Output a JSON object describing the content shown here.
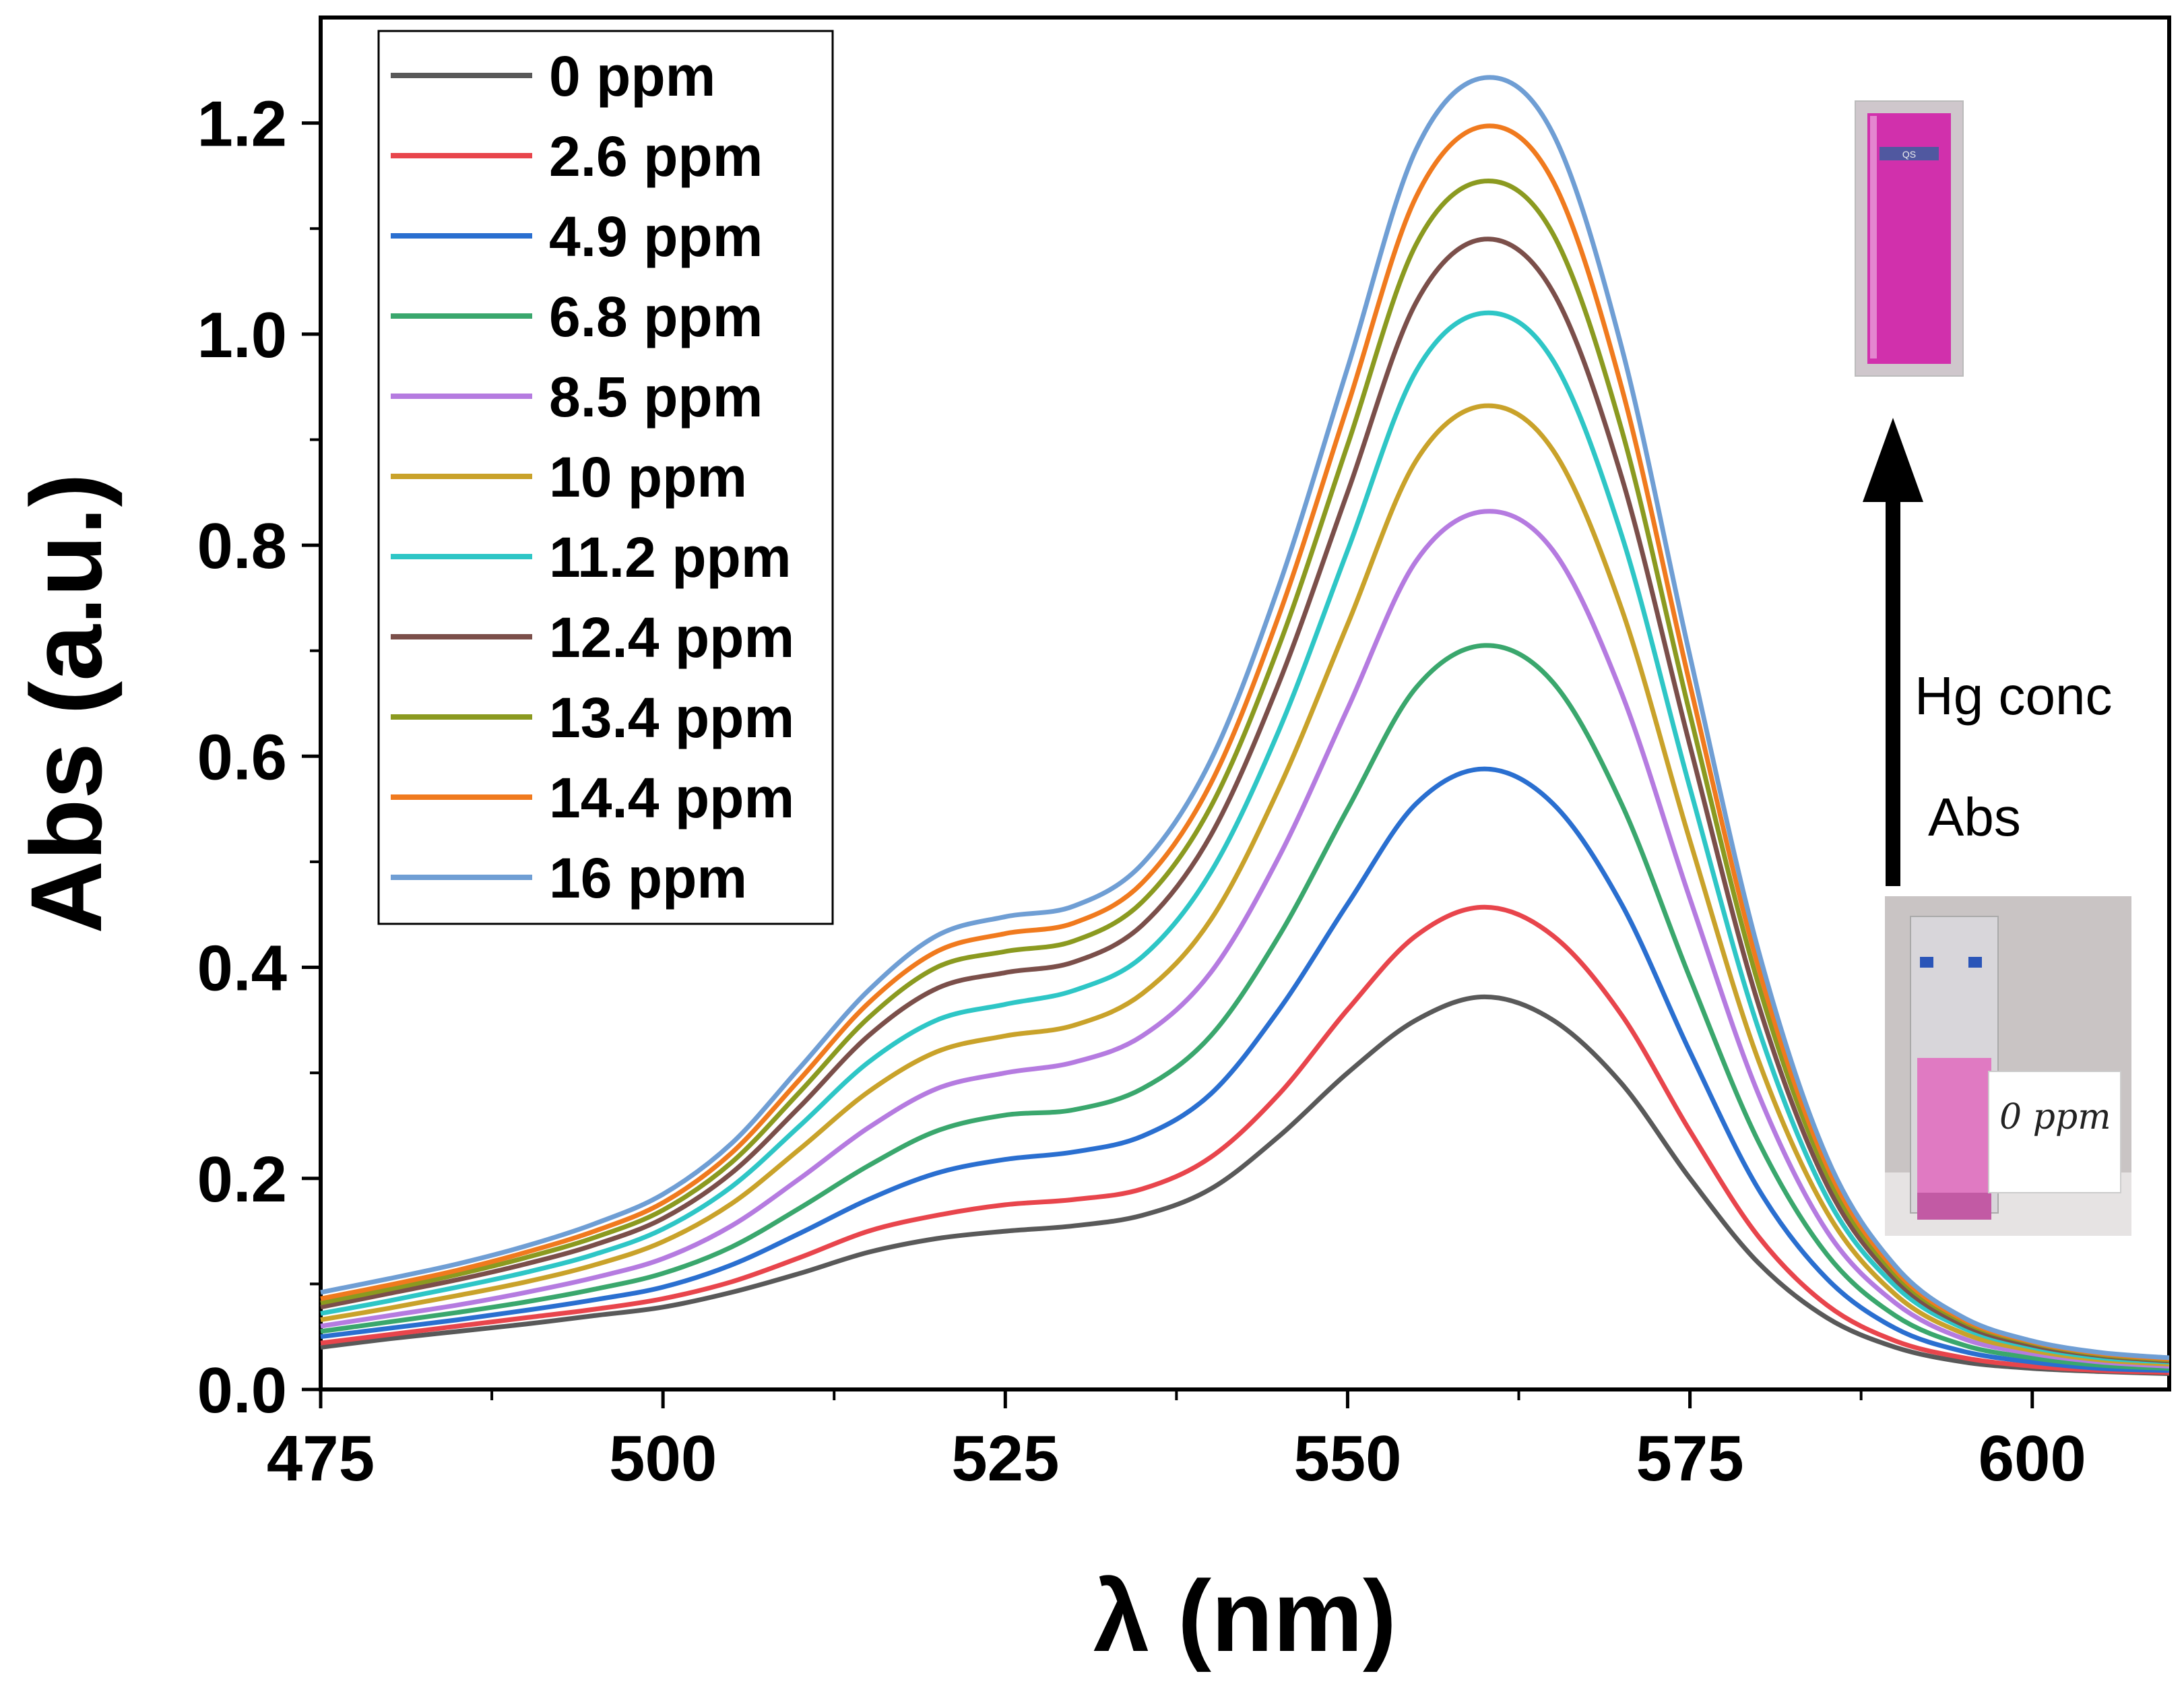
{
  "chart_data": {
    "type": "line",
    "title": "",
    "xlabel": "λ (nm)",
    "ylabel": "Abs (a.u.)",
    "xlim": [
      475,
      610
    ],
    "ylim": [
      0.0,
      1.3
    ],
    "x_ticks": [
      "475",
      "500",
      "525",
      "550",
      "575",
      "600"
    ],
    "y_ticks": [
      "0.0",
      "0.2",
      "0.4",
      "0.6",
      "0.8",
      "1.0",
      "1.2"
    ],
    "grid": false,
    "legend_position": "top-left",
    "x": [
      475,
      480,
      485,
      490,
      495,
      500,
      505,
      510,
      515,
      520,
      525,
      530,
      535,
      540,
      545,
      550,
      555,
      560,
      565,
      570,
      575,
      580,
      585,
      590,
      595,
      600,
      605,
      610
    ],
    "series": [
      {
        "name": "0 ppm",
        "color": "#595959",
        "values": [
          0.04,
          0.048,
          0.055,
          0.062,
          0.07,
          0.078,
          0.092,
          0.11,
          0.13,
          0.143,
          0.15,
          0.155,
          0.165,
          0.19,
          0.24,
          0.3,
          0.35,
          0.372,
          0.35,
          0.29,
          0.2,
          0.12,
          0.068,
          0.04,
          0.026,
          0.02,
          0.017,
          0.015
        ]
      },
      {
        "name": "2.6 ppm",
        "color": "#e8454c",
        "values": [
          0.044,
          0.052,
          0.06,
          0.068,
          0.076,
          0.086,
          0.102,
          0.125,
          0.15,
          0.165,
          0.175,
          0.18,
          0.19,
          0.22,
          0.28,
          0.36,
          0.43,
          0.457,
          0.43,
          0.355,
          0.245,
          0.145,
          0.08,
          0.046,
          0.03,
          0.022,
          0.018,
          0.016
        ]
      },
      {
        "name": "4.9 ppm",
        "color": "#2a6fd0",
        "values": [
          0.05,
          0.058,
          0.066,
          0.075,
          0.085,
          0.097,
          0.118,
          0.148,
          0.18,
          0.205,
          0.218,
          0.225,
          0.24,
          0.28,
          0.36,
          0.46,
          0.555,
          0.588,
          0.555,
          0.46,
          0.32,
          0.19,
          0.105,
          0.058,
          0.036,
          0.026,
          0.02,
          0.018
        ]
      },
      {
        "name": "6.8 ppm",
        "color": "#3aa76d",
        "values": [
          0.055,
          0.064,
          0.073,
          0.083,
          0.095,
          0.11,
          0.135,
          0.172,
          0.212,
          0.245,
          0.26,
          0.265,
          0.285,
          0.335,
          0.43,
          0.55,
          0.665,
          0.705,
          0.67,
          0.555,
          0.39,
          0.235,
          0.128,
          0.07,
          0.042,
          0.03,
          0.023,
          0.02
        ]
      },
      {
        "name": "8.5 ppm",
        "color": "#b57be0",
        "values": [
          0.06,
          0.07,
          0.08,
          0.092,
          0.106,
          0.124,
          0.155,
          0.2,
          0.248,
          0.285,
          0.3,
          0.31,
          0.335,
          0.395,
          0.505,
          0.645,
          0.785,
          0.832,
          0.795,
          0.66,
          0.465,
          0.28,
          0.15,
          0.082,
          0.048,
          0.034,
          0.026,
          0.022
        ]
      },
      {
        "name": "10 ppm",
        "color": "#c9a22a",
        "values": [
          0.066,
          0.077,
          0.089,
          0.102,
          0.118,
          0.14,
          0.176,
          0.228,
          0.282,
          0.32,
          0.335,
          0.345,
          0.375,
          0.445,
          0.57,
          0.725,
          0.88,
          0.932,
          0.89,
          0.74,
          0.52,
          0.312,
          0.168,
          0.09,
          0.053,
          0.037,
          0.028,
          0.024
        ]
      },
      {
        "name": "11.2 ppm",
        "color": "#2ec6c6",
        "values": [
          0.072,
          0.084,
          0.097,
          0.111,
          0.128,
          0.152,
          0.192,
          0.25,
          0.31,
          0.35,
          0.365,
          0.378,
          0.41,
          0.49,
          0.625,
          0.795,
          0.965,
          1.02,
          0.975,
          0.81,
          0.57,
          0.342,
          0.182,
          0.098,
          0.058,
          0.04,
          0.03,
          0.026
        ]
      },
      {
        "name": "12.4 ppm",
        "color": "#7b4f4a",
        "values": [
          0.078,
          0.091,
          0.104,
          0.119,
          0.137,
          0.162,
          0.205,
          0.268,
          0.335,
          0.38,
          0.395,
          0.405,
          0.44,
          0.525,
          0.67,
          0.85,
          1.03,
          1.09,
          1.04,
          0.865,
          0.61,
          0.365,
          0.194,
          0.104,
          0.061,
          0.042,
          0.032,
          0.027
        ]
      },
      {
        "name": "13.4 ppm",
        "color": "#8b9a20",
        "values": [
          0.082,
          0.095,
          0.109,
          0.125,
          0.144,
          0.17,
          0.215,
          0.282,
          0.352,
          0.4,
          0.415,
          0.425,
          0.462,
          0.552,
          0.705,
          0.895,
          1.085,
          1.145,
          1.095,
          0.91,
          0.64,
          0.384,
          0.204,
          0.109,
          0.064,
          0.044,
          0.033,
          0.028
        ]
      },
      {
        "name": "14.4 ppm",
        "color": "#f07a1e",
        "values": [
          0.086,
          0.099,
          0.113,
          0.13,
          0.15,
          0.177,
          0.224,
          0.294,
          0.366,
          0.415,
          0.432,
          0.442,
          0.48,
          0.574,
          0.734,
          0.932,
          1.13,
          1.197,
          1.145,
          0.95,
          0.668,
          0.4,
          0.212,
          0.113,
          0.066,
          0.045,
          0.034,
          0.029
        ]
      },
      {
        "name": "16 ppm",
        "color": "#6f9ed4",
        "values": [
          0.092,
          0.105,
          0.119,
          0.136,
          0.157,
          0.185,
          0.233,
          0.305,
          0.378,
          0.43,
          0.448,
          0.458,
          0.498,
          0.596,
          0.762,
          0.968,
          1.175,
          1.243,
          1.19,
          0.988,
          0.695,
          0.416,
          0.22,
          0.117,
          0.068,
          0.046,
          0.035,
          0.03
        ]
      }
    ],
    "annotations": {
      "arrow_text_1": "Hg conc",
      "arrow_text_2": "Abs",
      "photo_note": "0 ppm"
    }
  }
}
